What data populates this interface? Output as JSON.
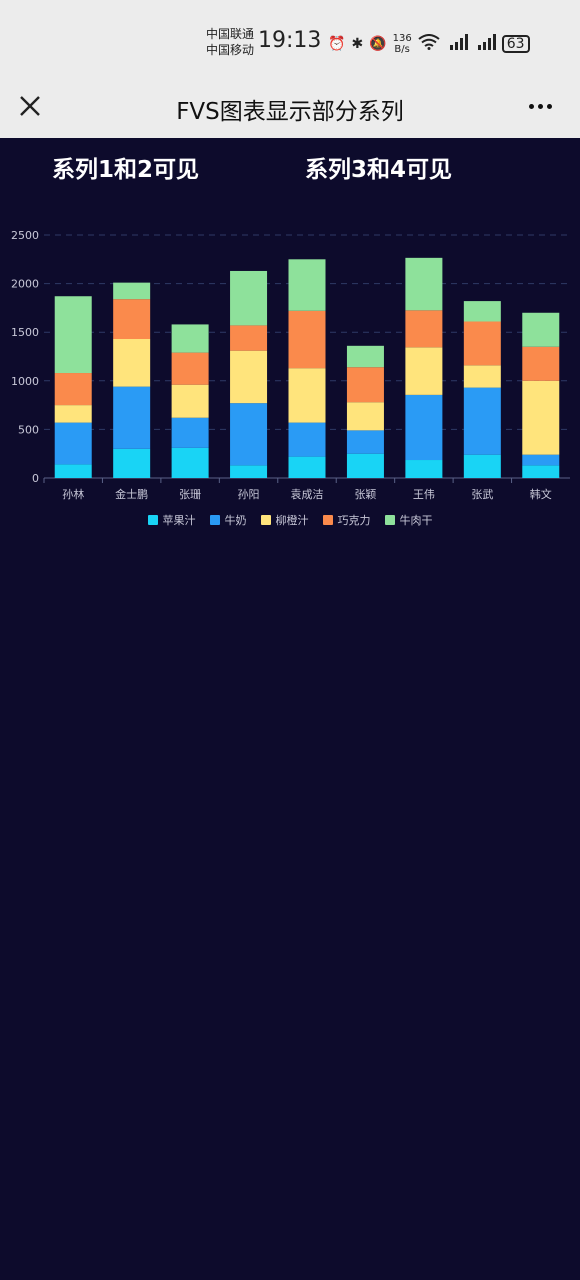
{
  "status": {
    "carrier1": "中国联通",
    "carrier2": "中国移动",
    "time": "19:13",
    "speed_value": "136",
    "speed_unit": "B/s",
    "battery": "63"
  },
  "nav": {
    "title": "FVS图表显示部分系列"
  },
  "buttons": {
    "series12": "系列1和2可见",
    "series34": "系列3和4可见"
  },
  "chart_data": {
    "type": "bar",
    "stacked": true,
    "categories": [
      "孙林",
      "金士鹏",
      "张珊",
      "孙阳",
      "袁成洁",
      "张颖",
      "王伟",
      "张武",
      "韩文"
    ],
    "ylim": [
      0,
      2500
    ],
    "yticks": [
      0,
      500,
      1000,
      1500,
      2000,
      2500
    ],
    "series": [
      {
        "name": "苹果汁",
        "color": "#19d4f5",
        "values": [
          140,
          300,
          310,
          130,
          220,
          250,
          185,
          240,
          130
        ]
      },
      {
        "name": "牛奶",
        "color": "#2a9bf5",
        "values": [
          430,
          640,
          310,
          640,
          350,
          240,
          670,
          690,
          110
        ]
      },
      {
        "name": "柳橙汁",
        "color": "#ffe47c",
        "values": [
          180,
          490,
          340,
          540,
          560,
          290,
          490,
          230,
          760
        ]
      },
      {
        "name": "巧克力",
        "color": "#fa8a4c",
        "values": [
          330,
          410,
          330,
          260,
          590,
          360,
          380,
          450,
          350
        ]
      },
      {
        "name": "牛肉干",
        "color": "#8ee19b",
        "values": [
          790,
          170,
          290,
          560,
          530,
          220,
          540,
          210,
          350
        ]
      }
    ],
    "grid": true,
    "legend_position": "bottom"
  }
}
